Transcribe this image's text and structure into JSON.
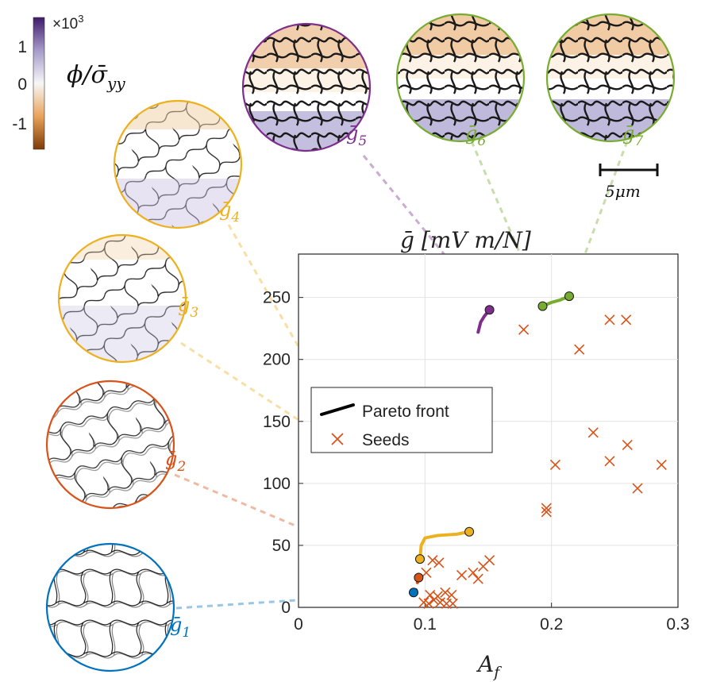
{
  "chart_data": {
    "type": "scatter",
    "title": "ḡ [mV m/N]",
    "xlabel": "A",
    "xlabel_sub": "f",
    "ylabel": "",
    "xlim": [
      0,
      0.3
    ],
    "ylim": [
      0,
      285
    ],
    "grid": true,
    "x_ticks": [
      0,
      0.1,
      0.2,
      0.3
    ],
    "x_tick_labels": [
      "0",
      "0.1",
      "0.2",
      "0.3"
    ],
    "y_ticks": [
      0,
      50,
      100,
      150,
      200,
      250
    ],
    "y_tick_labels": [
      "0",
      "50",
      "100",
      "150",
      "200",
      "250"
    ],
    "legend": {
      "placement": "center-left",
      "entries": [
        {
          "label": "Pareto front",
          "marker": "line",
          "color": "#000000"
        },
        {
          "label": "Seeds",
          "marker": "x",
          "color": "#D95319"
        }
      ]
    },
    "series": [
      {
        "name": "Seeds",
        "marker": "x",
        "color": "#D95319",
        "points": [
          [
            0.099,
            4
          ],
          [
            0.103,
            3
          ],
          [
            0.107,
            6
          ],
          [
            0.112,
            4
          ],
          [
            0.117,
            3
          ],
          [
            0.122,
            3
          ],
          [
            0.104,
            10
          ],
          [
            0.11,
            9
          ],
          [
            0.116,
            12
          ],
          [
            0.121,
            10
          ],
          [
            0.101,
            28
          ],
          [
            0.106,
            38
          ],
          [
            0.111,
            36
          ],
          [
            0.129,
            26
          ],
          [
            0.138,
            28
          ],
          [
            0.142,
            23
          ],
          [
            0.146,
            33
          ],
          [
            0.151,
            38
          ],
          [
            0.178,
            224
          ],
          [
            0.196,
            77
          ],
          [
            0.196,
            80
          ],
          [
            0.203,
            115
          ],
          [
            0.222,
            208
          ],
          [
            0.233,
            141
          ],
          [
            0.246,
            118
          ],
          [
            0.246,
            232
          ],
          [
            0.259,
            232
          ],
          [
            0.26,
            131
          ],
          [
            0.268,
            96
          ],
          [
            0.287,
            115
          ]
        ]
      },
      {
        "name": "Pareto front segment 1",
        "marker": "line",
        "color": "#0072BD",
        "points": [
          [
            0.091,
            12
          ],
          [
            0.093,
            14
          ]
        ]
      },
      {
        "name": "Pareto front segment 2",
        "marker": "line",
        "color": "#D95319",
        "points": [
          [
            0.094,
            20
          ],
          [
            0.095,
            24
          ]
        ]
      },
      {
        "name": "Pareto front segment 3",
        "marker": "line",
        "color": "#EDB120",
        "points": [
          [
            0.096,
            38
          ],
          [
            0.097,
            50
          ],
          [
            0.1,
            56
          ],
          [
            0.11,
            58
          ],
          [
            0.125,
            59
          ],
          [
            0.135,
            61
          ]
        ]
      },
      {
        "name": "Pareto front segment 4",
        "marker": "line",
        "color": "#7E2F8E",
        "points": [
          [
            0.142,
            222
          ],
          [
            0.144,
            230
          ],
          [
            0.147,
            235
          ],
          [
            0.151,
            240
          ]
        ]
      },
      {
        "name": "Pareto front segment 5",
        "marker": "line",
        "color": "#77AC30",
        "points": [
          [
            0.193,
            243
          ],
          [
            0.2,
            246
          ],
          [
            0.207,
            248
          ],
          [
            0.214,
            251
          ]
        ]
      }
    ],
    "designs": [
      {
        "name": "g1",
        "label": "ḡ",
        "sub": "1",
        "color": "#0072BD",
        "point": [
          0.091,
          12
        ]
      },
      {
        "name": "g2",
        "label": "ḡ",
        "sub": "2",
        "color": "#D95319",
        "point": [
          0.095,
          24
        ]
      },
      {
        "name": "g3",
        "label": "ḡ",
        "sub": "3",
        "color": "#EDB120",
        "point": [
          0.135,
          61
        ]
      },
      {
        "name": "g4",
        "label": "ḡ",
        "sub": "4",
        "color": "#EDB120",
        "point": [
          0.096,
          39
        ]
      },
      {
        "name": "g5",
        "label": "ḡ",
        "sub": "5",
        "color": "#7E2F8E",
        "point": [
          0.151,
          240
        ]
      },
      {
        "name": "g6",
        "label": "ḡ",
        "sub": "6",
        "color": "#77AC30",
        "point": [
          0.193,
          243
        ]
      },
      {
        "name": "g7",
        "label": "ḡ",
        "sub": "7",
        "color": "#77AC30",
        "point": [
          0.214,
          251
        ]
      }
    ],
    "colorbar": {
      "label": "ϕ/σ̄",
      "label_sub": "yy",
      "multiplier": "×10",
      "multiplier_exp": "3",
      "ticks": [
        1,
        0,
        -1
      ],
      "tick_labels": [
        "1",
        "0",
        "-1"
      ],
      "range": [
        -1.7,
        1.7
      ],
      "colors": [
        "#3f1b6b",
        "#a79bc9",
        "#f7f7f7",
        "#e9a35a",
        "#7f3b08"
      ]
    },
    "scale_bar_label": "5μm"
  }
}
